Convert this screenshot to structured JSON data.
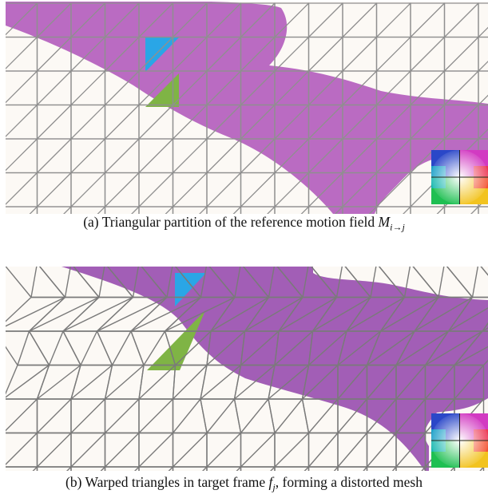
{
  "figure": {
    "panel_a": {
      "caption_label": "(a)",
      "caption_text": "Triangular partition of the reference motion field ",
      "caption_math": "M",
      "caption_math_sub": "i→j"
    },
    "panel_b": {
      "caption_label": "(b)",
      "caption_text_1": "Warped triangles in target frame ",
      "caption_math": "f",
      "caption_math_sub": "j",
      "caption_text_2": ", forming a distorted mesh"
    }
  },
  "colors": {
    "background": "#fcf9f5",
    "motion_region": "#b25bbd",
    "grid_line_a": "#8f8f8f",
    "grid_line_b": "#7a7a7a",
    "highlight_triangle_blue": "#2aa6e6",
    "highlight_triangle_green": "#7fb445"
  },
  "icons": [
    "motion-color-wheel-icon"
  ]
}
